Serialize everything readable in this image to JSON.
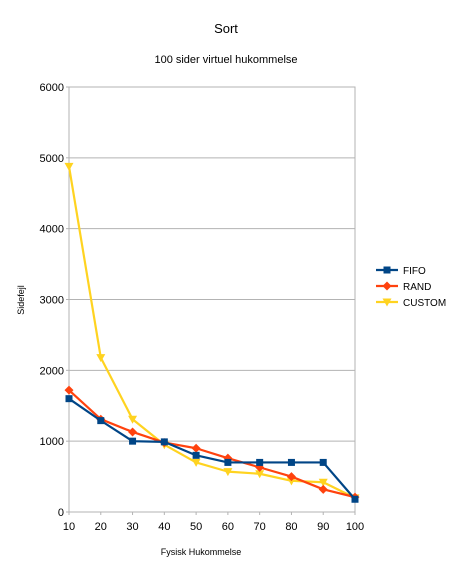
{
  "chart_data": {
    "type": "line",
    "title": "Sort",
    "subtitle": "100 sider virtuel hukommelse",
    "xlabel": "Fysisk Hukommelse",
    "ylabel": "Sidefejl",
    "x": [
      10,
      20,
      30,
      40,
      50,
      60,
      70,
      80,
      90,
      100
    ],
    "xlim": [
      10,
      100
    ],
    "ylim": [
      0,
      6000
    ],
    "y_ticks": [
      0,
      1000,
      2000,
      3000,
      4000,
      5000,
      6000
    ],
    "grid": "horizontal",
    "legend_position": "right",
    "series": [
      {
        "name": "FIFO",
        "color": "#004586",
        "marker": "square",
        "values": [
          1600,
          1290,
          1000,
          990,
          800,
          700,
          700,
          700,
          700,
          180
        ]
      },
      {
        "name": "RAND",
        "color": "#ff420e",
        "marker": "diamond",
        "values": [
          1720,
          1310,
          1130,
          980,
          900,
          760,
          630,
          500,
          320,
          210
        ]
      },
      {
        "name": "CUSTOM",
        "color": "#ffd320",
        "marker": "triangle-down",
        "values": [
          4880,
          2180,
          1310,
          950,
          700,
          570,
          540,
          440,
          420,
          200
        ]
      }
    ]
  }
}
